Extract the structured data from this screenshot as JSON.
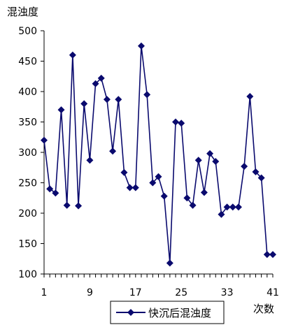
{
  "chart_data": {
    "type": "line",
    "ylabel": "混浊度",
    "xlabel": "次数",
    "ylim": [
      100,
      500
    ],
    "yticks": [
      100,
      150,
      200,
      250,
      300,
      350,
      400,
      450,
      500
    ],
    "xlim": [
      1,
      41
    ],
    "xticks": [
      1,
      9,
      17,
      25,
      33,
      41
    ],
    "grid": false,
    "legend_position": "bottom",
    "marker": "diamond",
    "line_color": "#0a0a6e",
    "series": [
      {
        "name": "快沉后混浊度",
        "x": [
          1,
          2,
          3,
          4,
          5,
          6,
          7,
          8,
          9,
          10,
          11,
          12,
          13,
          14,
          15,
          16,
          17,
          18,
          19,
          20,
          21,
          22,
          23,
          24,
          25,
          26,
          27,
          28,
          29,
          30,
          31,
          32,
          33,
          34,
          35,
          36,
          37,
          38,
          39,
          40,
          41
        ],
        "values": [
          320,
          240,
          233,
          370,
          213,
          460,
          212,
          380,
          287,
          413,
          422,
          387,
          302,
          387,
          267,
          242,
          242,
          475,
          395,
          250,
          260,
          228,
          118,
          350,
          348,
          225,
          213,
          287,
          234,
          298,
          285,
          198,
          210,
          210,
          210,
          277,
          392,
          268,
          258,
          132,
          132
        ]
      }
    ]
  }
}
